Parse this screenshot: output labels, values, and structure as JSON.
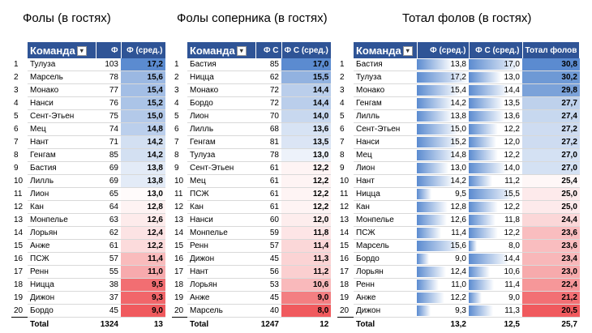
{
  "panels": [
    {
      "title": "Фолы (в гостях)",
      "headers": [
        "Команда",
        "Ф",
        "Ф (сред.)"
      ],
      "rows": [
        [
          "1",
          "Тулуза",
          "103",
          "17,2"
        ],
        [
          "2",
          "Марсель",
          "78",
          "15,6"
        ],
        [
          "3",
          "Монако",
          "77",
          "15,4"
        ],
        [
          "4",
          "Нанси",
          "76",
          "15,2"
        ],
        [
          "5",
          "Сент-Этьен",
          "75",
          "15,0"
        ],
        [
          "6",
          "Мец",
          "74",
          "14,8"
        ],
        [
          "7",
          "Нант",
          "71",
          "14,2"
        ],
        [
          "8",
          "Генгам",
          "85",
          "14,2"
        ],
        [
          "9",
          "Бастия",
          "69",
          "13,8"
        ],
        [
          "10",
          "Лилль",
          "69",
          "13,8"
        ],
        [
          "11",
          "Лион",
          "65",
          "13,0"
        ],
        [
          "12",
          "Кан",
          "64",
          "12,8"
        ],
        [
          "13",
          "Монпелье",
          "63",
          "12,6"
        ],
        [
          "14",
          "Лорьян",
          "62",
          "12,4"
        ],
        [
          "15",
          "Анже",
          "61",
          "12,2"
        ],
        [
          "16",
          "ПСЖ",
          "57",
          "11,4"
        ],
        [
          "17",
          "Ренн",
          "55",
          "11,0"
        ],
        [
          "18",
          "Ницца",
          "38",
          "9,5"
        ],
        [
          "19",
          "Дижон",
          "37",
          "9,3"
        ],
        [
          "20",
          "Бордо",
          "45",
          "9,0"
        ]
      ],
      "total": [
        "Total",
        "1324",
        "13"
      ]
    },
    {
      "title": "Фолы соперника (в гостях)",
      "headers": [
        "Команда",
        "Ф С",
        "Ф С (сред.)"
      ],
      "rows": [
        [
          "1",
          "Бастия",
          "85",
          "17,0"
        ],
        [
          "2",
          "Ницца",
          "62",
          "15,5"
        ],
        [
          "3",
          "Монако",
          "72",
          "14,4"
        ],
        [
          "4",
          "Бордо",
          "72",
          "14,4"
        ],
        [
          "5",
          "Лион",
          "70",
          "14,0"
        ],
        [
          "6",
          "Лилль",
          "68",
          "13,6"
        ],
        [
          "7",
          "Генгам",
          "81",
          "13,5"
        ],
        [
          "8",
          "Тулуза",
          "78",
          "13,0"
        ],
        [
          "9",
          "Сент-Этьен",
          "61",
          "12,2"
        ],
        [
          "10",
          "Мец",
          "61",
          "12,2"
        ],
        [
          "11",
          "ПСЖ",
          "61",
          "12,2"
        ],
        [
          "12",
          "Кан",
          "61",
          "12,2"
        ],
        [
          "13",
          "Нанси",
          "60",
          "12,0"
        ],
        [
          "14",
          "Монпелье",
          "59",
          "11,8"
        ],
        [
          "15",
          "Ренн",
          "57",
          "11,4"
        ],
        [
          "16",
          "Дижон",
          "45",
          "11,3"
        ],
        [
          "17",
          "Нант",
          "56",
          "11,2"
        ],
        [
          "18",
          "Лорьян",
          "53",
          "10,6"
        ],
        [
          "19",
          "Анже",
          "45",
          "9,0"
        ],
        [
          "20",
          "Марсель",
          "40",
          "8,0"
        ]
      ],
      "total": [
        "Total",
        "1247",
        "12"
      ]
    },
    {
      "title": "Тотал фолов (в гостях)",
      "headers": [
        "Команда",
        "Ф (сред.)",
        "Ф С (сред.)",
        "Тотал фолов"
      ],
      "rows": [
        [
          "1",
          "Бастия",
          "13,8",
          "17,0",
          "30,8"
        ],
        [
          "2",
          "Тулуза",
          "17,2",
          "13,0",
          "30,2"
        ],
        [
          "3",
          "Монако",
          "15,4",
          "14,4",
          "29,8"
        ],
        [
          "4",
          "Генгам",
          "14,2",
          "13,5",
          "27,7"
        ],
        [
          "5",
          "Лилль",
          "13,8",
          "13,6",
          "27,4"
        ],
        [
          "6",
          "Сент-Этьен",
          "15,0",
          "12,2",
          "27,2"
        ],
        [
          "7",
          "Нанси",
          "15,2",
          "12,0",
          "27,2"
        ],
        [
          "8",
          "Мец",
          "14,8",
          "12,2",
          "27,0"
        ],
        [
          "9",
          "Лион",
          "13,0",
          "14,0",
          "27,0"
        ],
        [
          "10",
          "Нант",
          "14,2",
          "11,2",
          "25,4"
        ],
        [
          "11",
          "Ницца",
          "9,5",
          "15,5",
          "25,0"
        ],
        [
          "12",
          "Кан",
          "12,8",
          "12,2",
          "25,0"
        ],
        [
          "13",
          "Монпелье",
          "12,6",
          "11,8",
          "24,4"
        ],
        [
          "14",
          "ПСЖ",
          "11,4",
          "12,2",
          "23,6"
        ],
        [
          "15",
          "Марсель",
          "15,6",
          "8,0",
          "23,6"
        ],
        [
          "16",
          "Бордо",
          "9,0",
          "14,4",
          "23,4"
        ],
        [
          "17",
          "Лорьян",
          "12,4",
          "10,6",
          "23,0"
        ],
        [
          "18",
          "Ренн",
          "11,0",
          "11,4",
          "22,4"
        ],
        [
          "19",
          "Анже",
          "12,2",
          "9,0",
          "21,2"
        ],
        [
          "20",
          "Дижон",
          "9,3",
          "11,3",
          "20,5"
        ]
      ],
      "total": [
        "Total",
        "13,2",
        "12,5",
        "25,7"
      ]
    }
  ],
  "colors": {
    "header_bg": "#2f5496",
    "scale_high": "#5b8bd0",
    "scale_mid": "#ffffff",
    "scale_low": "#f05a5e",
    "databar": "#5b8bd0"
  }
}
